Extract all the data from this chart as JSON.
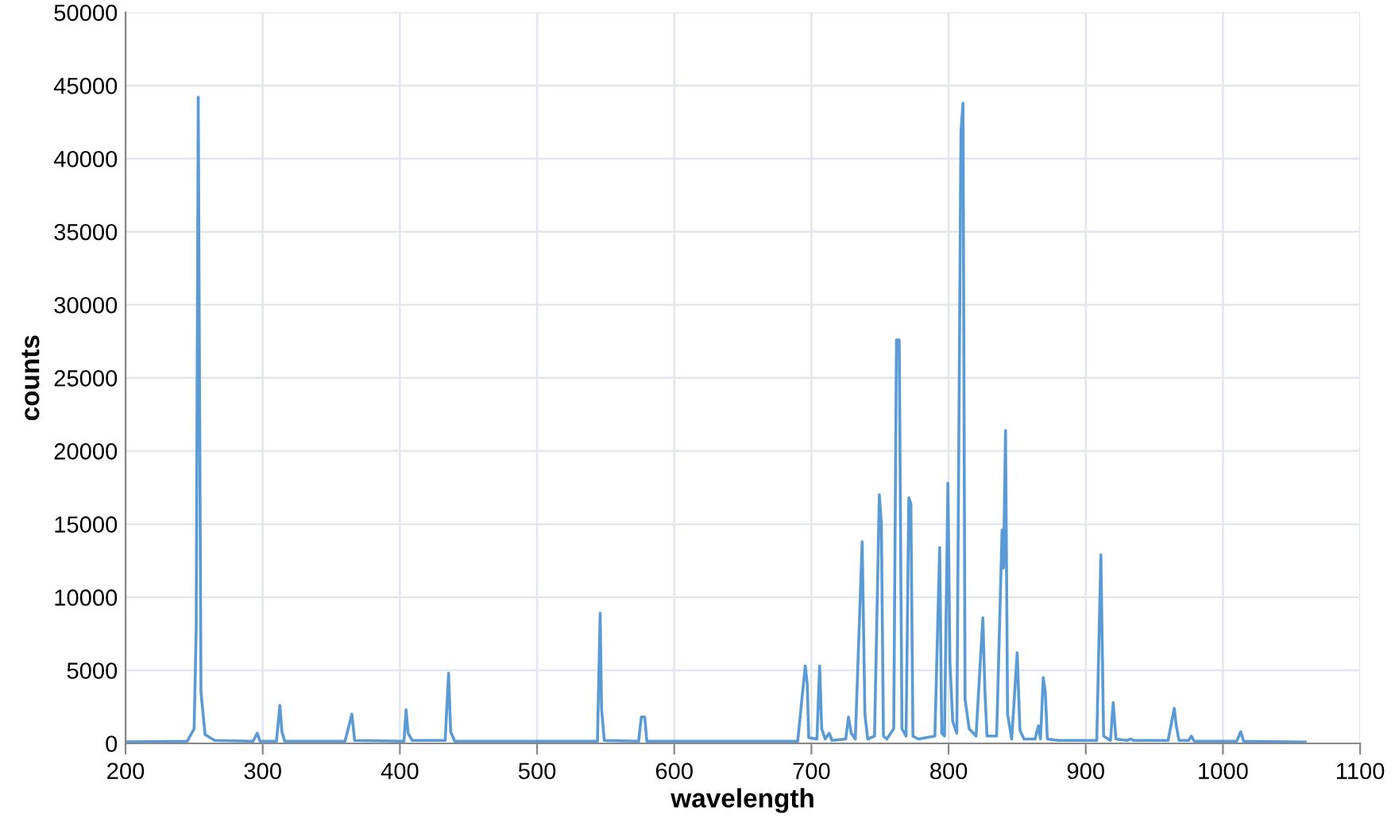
{
  "chart_data": {
    "type": "line",
    "xlabel": "wavelength",
    "ylabel": "counts",
    "x": [
      200,
      245,
      250,
      251.5,
      253,
      253.7,
      255,
      258,
      265,
      293,
      296,
      298,
      310,
      312.5,
      314,
      316,
      360,
      365,
      367,
      403,
      404.5,
      406,
      409,
      433,
      435.5,
      437,
      440,
      544,
      546,
      547,
      549,
      574,
      576,
      578.5,
      580,
      690,
      695.5,
      697,
      698,
      704,
      706,
      707.5,
      710,
      713,
      715,
      725,
      727,
      729,
      732,
      737,
      739,
      741,
      746,
      749.5,
      751,
      752.5,
      755,
      760,
      762,
      764,
      766,
      769,
      771,
      772.5,
      774,
      778,
      790,
      793.5,
      795,
      797,
      799.5,
      801,
      803,
      806,
      809,
      810.5,
      812,
      815,
      820,
      825,
      826.5,
      828,
      835,
      839,
      840,
      841.5,
      843,
      846,
      850,
      852,
      855,
      863,
      865.5,
      867,
      869,
      870.5,
      872,
      880,
      908,
      911,
      913,
      918,
      920,
      922,
      930,
      933,
      935,
      960,
      964.5,
      966,
      968,
      975,
      977,
      979,
      1010,
      1013,
      1015,
      1060
    ],
    "series": [
      {
        "color": "#5b9bd5",
        "values": [
          100,
          150,
          1000,
          7800,
          44200,
          29200,
          3500,
          600,
          200,
          150,
          700,
          150,
          150,
          2600,
          800,
          150,
          150,
          2000,
          200,
          150,
          2300,
          700,
          200,
          200,
          4800,
          800,
          150,
          150,
          8900,
          2400,
          200,
          150,
          1800,
          1800,
          150,
          150,
          5300,
          4000,
          400,
          300,
          5300,
          1000,
          300,
          700,
          200,
          300,
          1800,
          700,
          300,
          13800,
          2000,
          300,
          500,
          17000,
          15000,
          500,
          300,
          1000,
          27600,
          27600,
          1000,
          500,
          16800,
          16400,
          500,
          300,
          500,
          13400,
          700,
          500,
          17800,
          5500,
          1500,
          700,
          41800,
          43800,
          3000,
          1000,
          500,
          8600,
          3500,
          500,
          500,
          14600,
          12000,
          21400,
          2000,
          300,
          6200,
          900,
          300,
          300,
          1200,
          300,
          4500,
          3500,
          300,
          200,
          200,
          12900,
          500,
          200,
          2800,
          300,
          200,
          300,
          200,
          200,
          2400,
          1200,
          200,
          200,
          500,
          150,
          150,
          800,
          150,
          100
        ]
      }
    ],
    "xlim": [
      200,
      1100
    ],
    "xticks": [
      200,
      300,
      400,
      500,
      600,
      700,
      800,
      900,
      1000,
      1100
    ],
    "ylim": [
      0,
      50000
    ],
    "yticks": [
      0,
      5000,
      10000,
      15000,
      20000,
      25000,
      30000,
      35000,
      40000,
      45000,
      50000
    ],
    "grid": true,
    "marker": "none",
    "line_style": "solid"
  }
}
